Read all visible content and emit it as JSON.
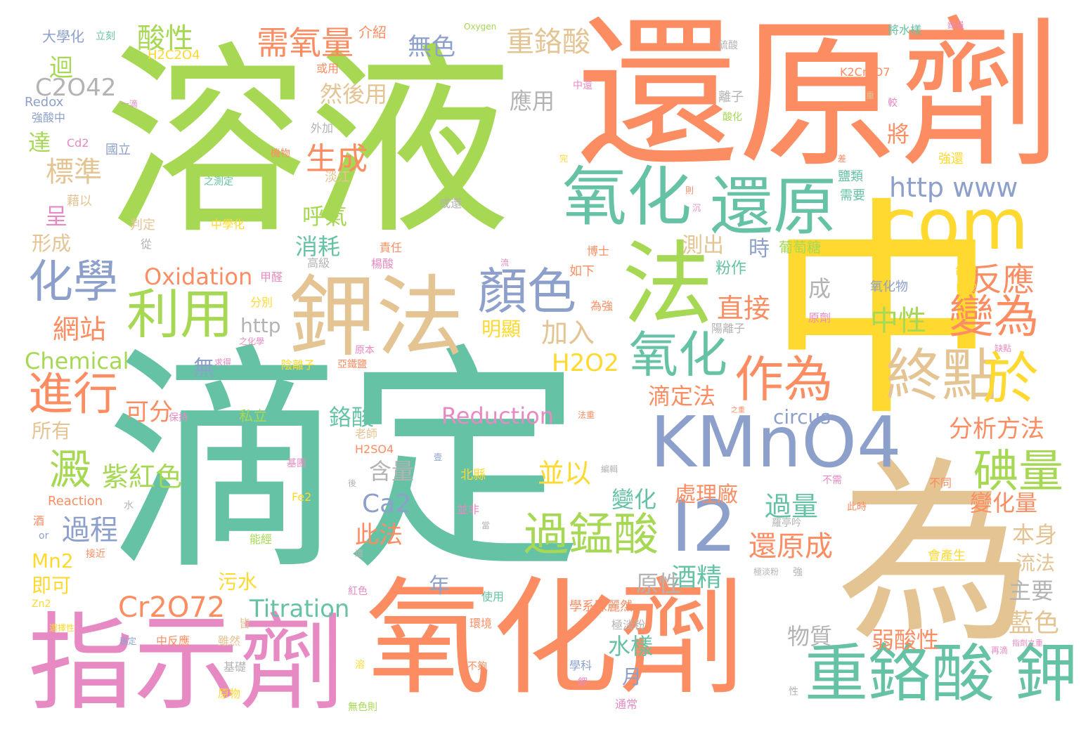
{
  "palette": {
    "green": "#66c2a5",
    "orange": "#fc8d62",
    "blue": "#8da0cb",
    "pink": "#e78ac3",
    "lime": "#a6d854",
    "yellow": "#ffd92f",
    "tan": "#e5c494",
    "gray": "#b3b3b3"
  },
  "words": [
    {
      "text": "溶液"
    },
    {
      "text": "滴定"
    },
    {
      "text": "還原劑"
    },
    {
      "text": "中"
    },
    {
      "text": "為"
    },
    {
      "text": "氧化劑"
    },
    {
      "text": "指示劑"
    },
    {
      "text": "KMnO4"
    },
    {
      "text": "com"
    },
    {
      "text": "法"
    },
    {
      "text": "鉀法"
    },
    {
      "text": "氧化"
    },
    {
      "text": "還原"
    },
    {
      "text": "I2"
    },
    {
      "text": "重鉻酸 鉀"
    },
    {
      "text": "終點"
    },
    {
      "text": "顏色"
    },
    {
      "text": "利用"
    },
    {
      "text": "氧化"
    },
    {
      "text": "作為"
    },
    {
      "text": "過錳酸"
    },
    {
      "text": "化學"
    },
    {
      "text": "進行"
    },
    {
      "text": "http www"
    },
    {
      "text": "於"
    },
    {
      "text": "碘量"
    },
    {
      "text": "變為"
    },
    {
      "text": "反應"
    },
    {
      "text": "澱"
    },
    {
      "text": "需氧量"
    },
    {
      "text": "重鉻酸"
    },
    {
      "text": "酸性"
    },
    {
      "text": "C2O42"
    },
    {
      "text": "Oxidation"
    },
    {
      "text": "Reduction"
    },
    {
      "text": "Cr2O72"
    },
    {
      "text": "Titration"
    },
    {
      "text": "Chemical"
    },
    {
      "text": "生成"
    },
    {
      "text": "標準"
    },
    {
      "text": "紫紅色"
    },
    {
      "text": "過程"
    },
    {
      "text": "網站"
    },
    {
      "text": "並以"
    },
    {
      "text": "中性"
    },
    {
      "text": "直接"
    },
    {
      "text": "還原成"
    },
    {
      "text": "分析方法"
    },
    {
      "text": "變化量"
    },
    {
      "text": "Ca2"
    },
    {
      "text": "過量"
    },
    {
      "text": "H2O2"
    },
    {
      "text": "加入"
    },
    {
      "text": "滴定法"
    },
    {
      "text": "酒精"
    },
    {
      "text": "藍色"
    },
    {
      "text": "處理廠"
    },
    {
      "text": "弱酸性"
    },
    {
      "text": "無色"
    },
    {
      "text": "然後用"
    },
    {
      "text": "應用"
    },
    {
      "text": "測出"
    },
    {
      "text": "呼氣"
    },
    {
      "text": "消耗"
    },
    {
      "text": "可分"
    },
    {
      "text": "鉻酸"
    },
    {
      "text": "含量"
    },
    {
      "text": "此法"
    },
    {
      "text": "變化"
    },
    {
      "text": "水樣"
    },
    {
      "text": "物質"
    },
    {
      "text": "原性"
    },
    {
      "text": "本身"
    },
    {
      "text": "流法"
    },
    {
      "text": "主要"
    },
    {
      "text": "即可"
    },
    {
      "text": "Mn2"
    },
    {
      "text": "污水"
    },
    {
      "text": "circus"
    },
    {
      "text": "http"
    },
    {
      "text": "明顯"
    },
    {
      "text": "所有"
    },
    {
      "text": "形成"
    },
    {
      "text": "迴"
    },
    {
      "text": "達"
    },
    {
      "text": "呈"
    },
    {
      "text": "將"
    },
    {
      "text": "時"
    },
    {
      "text": "成"
    },
    {
      "text": "無"
    },
    {
      "text": "年"
    },
    {
      "text": "月"
    },
    {
      "text": "大學化"
    },
    {
      "text": "介紹"
    },
    {
      "text": "H2C2O4"
    },
    {
      "text": "Redox"
    },
    {
      "text": "強酸中"
    },
    {
      "text": "Cd2"
    },
    {
      "text": "國立"
    },
    {
      "text": "藉以"
    },
    {
      "text": "判定"
    },
    {
      "text": "淡江"
    },
    {
      "text": "中學化"
    },
    {
      "text": "責任"
    },
    {
      "text": "楊酸"
    },
    {
      "text": "高級"
    },
    {
      "text": "甲醛"
    },
    {
      "text": "分別"
    },
    {
      "text": "陰離子"
    },
    {
      "text": "亞鐵鹽"
    },
    {
      "text": "私立"
    },
    {
      "text": "老師"
    },
    {
      "text": "H2SO4"
    },
    {
      "text": "北縣"
    },
    {
      "text": "Reaction"
    },
    {
      "text": "Fe2"
    },
    {
      "text": "能經"
    },
    {
      "text": "基團"
    },
    {
      "text": "並非"
    },
    {
      "text": "保持"
    },
    {
      "text": "求得"
    },
    {
      "text": "原本"
    },
    {
      "text": "之化學"
    },
    {
      "text": "博士"
    },
    {
      "text": "如下"
    },
    {
      "text": "為強"
    },
    {
      "text": "粉作"
    },
    {
      "text": "葡萄糖"
    },
    {
      "text": "陽離子"
    },
    {
      "text": "氧化物"
    },
    {
      "text": "原劑"
    },
    {
      "text": "台灣"
    },
    {
      "text": "Ba2"
    },
    {
      "text": "缺點"
    },
    {
      "text": "需要"
    },
    {
      "text": "鹽類"
    },
    {
      "text": "強還"
    },
    {
      "text": "離子"
    },
    {
      "text": "酸化"
    },
    {
      "text": "較"
    },
    {
      "text": "硫酸"
    },
    {
      "text": "將水樣"
    },
    {
      "text": "K2Cr2O7"
    },
    {
      "text": "Oxygen"
    },
    {
      "text": "立刻"
    },
    {
      "text": "或用"
    },
    {
      "text": "中還"
    },
    {
      "text": "機物"
    },
    {
      "text": "之測定"
    },
    {
      "text": "或還"
    },
    {
      "text": "從"
    },
    {
      "text": "外加"
    },
    {
      "text": "一滴"
    },
    {
      "text": "錄量"
    },
    {
      "text": "不需"
    },
    {
      "text": "不同"
    },
    {
      "text": "此時"
    },
    {
      "text": "羅亭吟"
    },
    {
      "text": "會產生"
    },
    {
      "text": "學系陳麗然"
    },
    {
      "text": "極淡粉"
    },
    {
      "text": "環境"
    },
    {
      "text": "使用"
    },
    {
      "text": "中反應"
    },
    {
      "text": "雖然"
    },
    {
      "text": "基礎"
    },
    {
      "text": "原物"
    },
    {
      "text": "無色則"
    },
    {
      "text": "不夠"
    },
    {
      "text": "學科"
    },
    {
      "text": "通常"
    },
    {
      "text": "再滴"
    },
    {
      "text": "選擇性"
    },
    {
      "text": "皆"
    },
    {
      "text": "性"
    },
    {
      "text": "穩定"
    },
    {
      "text": "紅色"
    },
    {
      "text": "接近"
    },
    {
      "text": "水"
    },
    {
      "text": "Zn2"
    },
    {
      "text": "酒"
    },
    {
      "text": "or"
    },
    {
      "text": "強"
    },
    {
      "text": "還"
    },
    {
      "text": "沉"
    },
    {
      "text": "之重"
    },
    {
      "text": "法重"
    },
    {
      "text": "壹"
    },
    {
      "text": "編輯"
    },
    {
      "text": "完"
    },
    {
      "text": "差"
    },
    {
      "text": "則"
    },
    {
      "text": "流"
    },
    {
      "text": "後"
    },
    {
      "text": "當"
    },
    {
      "text": "溶"
    },
    {
      "text": "鉀"
    },
    {
      "text": "重"
    },
    {
      "text": "指劑之重"
    },
    {
      "text": "極淡粉"
    }
  ]
}
